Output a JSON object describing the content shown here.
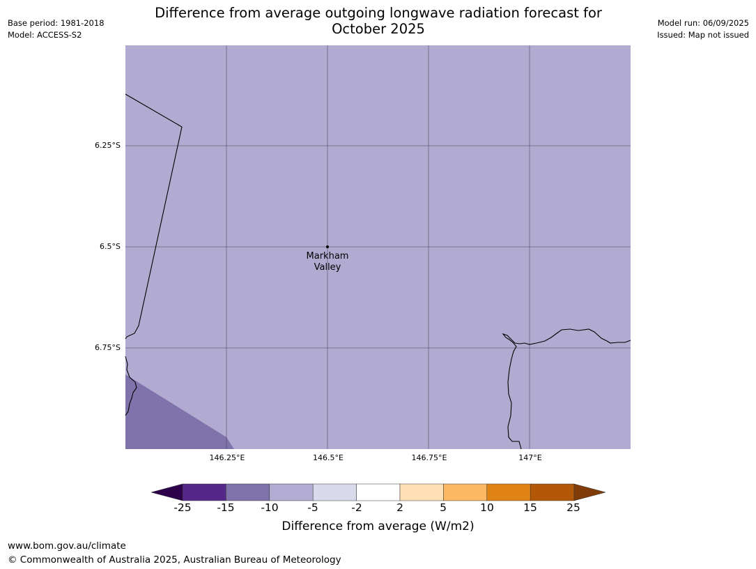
{
  "header": {
    "title_line1": "Difference from average outgoing longwave radiation forecast for",
    "title_line2": "October 2025",
    "base_period": "Base period: 1981-2018",
    "model": "Model: ACCESS-S2",
    "model_run": "Model run: 06/09/2025",
    "issued": "Issued: Map not issued"
  },
  "map": {
    "lat_labels": [
      "6.25°S",
      "6.5°S",
      "6.75°S"
    ],
    "lon_labels": [
      "146.25°E",
      "146.5°E",
      "146.75°E",
      "147°E"
    ],
    "place": {
      "name_line1": "Markham",
      "name_line2": "Valley"
    },
    "colors": {
      "fill_main": "#b1abd2",
      "fill_darker": "#8073ac",
      "gridline": "#4a4a5a"
    }
  },
  "legend": {
    "title": "Difference from average (W/m2)",
    "ticks": [
      "-25",
      "-15",
      "-10",
      "-5",
      "-2",
      "2",
      "5",
      "10",
      "15",
      "25"
    ],
    "colors": [
      "#2d004b",
      "#542788",
      "#8073ac",
      "#b2abd2",
      "#d8daeb",
      "#ffffff",
      "#fee0b6",
      "#fdb863",
      "#e08214",
      "#b35806",
      "#7f3b08"
    ]
  },
  "footer": {
    "url": "www.bom.gov.au/climate",
    "copyright": "© Commonwealth of Australia 2025, Australian Bureau of Meteorology"
  }
}
